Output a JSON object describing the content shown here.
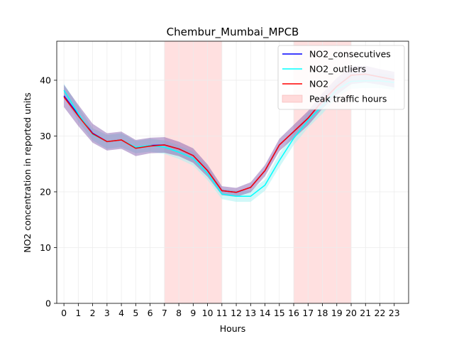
{
  "chart_data": {
    "type": "line",
    "title": "Chembur_Mumbai_MPCB",
    "xlabel": "Hours",
    "ylabel": "NO2 concentration in reported units",
    "x": [
      0,
      1,
      2,
      3,
      4,
      5,
      6,
      7,
      8,
      9,
      10,
      11,
      12,
      13,
      14,
      15,
      16,
      17,
      18,
      19,
      20,
      21,
      22,
      23
    ],
    "xlim": [
      -0.5,
      24
    ],
    "ylim": [
      0,
      47
    ],
    "yticks": [
      0,
      10,
      20,
      30,
      40
    ],
    "grid": true,
    "legend_position": "top-right",
    "peak_traffic_hours": [
      [
        7,
        11
      ],
      [
        16,
        20
      ]
    ],
    "series": [
      {
        "name": "NO2_consecutives",
        "color": "#0000ff",
        "values": [
          37.2,
          33.8,
          30.5,
          29.0,
          29.3,
          27.9,
          28.3,
          28.4,
          27.7,
          26.5,
          23.8,
          20.2,
          19.9,
          20.8,
          23.8,
          28.4,
          30.8,
          33.2,
          36.3,
          38.9,
          40.9,
          41.1,
          40.6,
          40.1
        ],
        "band_low": [
          35.2,
          31.8,
          28.8,
          27.4,
          27.7,
          26.4,
          26.9,
          27.0,
          26.4,
          25.2,
          22.7,
          19.4,
          19.1,
          19.9,
          22.8,
          27.3,
          29.6,
          31.9,
          34.9,
          37.4,
          39.3,
          39.6,
          39.2,
          38.7
        ],
        "band_high": [
          39.2,
          35.6,
          32.2,
          30.5,
          30.8,
          29.3,
          29.7,
          29.8,
          29.0,
          27.8,
          24.9,
          21.0,
          20.7,
          21.7,
          24.8,
          29.5,
          32.0,
          34.5,
          37.7,
          40.4,
          42.5,
          42.6,
          42.0,
          41.5
        ]
      },
      {
        "name": "NO2_outliers",
        "color": "#00ffff",
        "values": [
          38.2,
          34.0,
          30.3,
          29.0,
          29.3,
          28.0,
          28.3,
          28.0,
          27.1,
          26.0,
          23.3,
          19.6,
          19.2,
          19.2,
          21.2,
          25.6,
          29.6,
          32.8,
          35.4,
          38.3,
          39.8,
          39.9,
          39.9,
          39.6
        ],
        "band_low": [
          37.0,
          32.6,
          29.2,
          27.7,
          28.0,
          26.9,
          27.2,
          26.8,
          25.9,
          24.7,
          22.1,
          18.7,
          18.2,
          18.2,
          20.2,
          24.4,
          28.4,
          31.5,
          34.0,
          36.9,
          38.5,
          38.6,
          38.6,
          38.3
        ],
        "band_high": [
          39.4,
          35.3,
          31.4,
          30.2,
          30.5,
          29.1,
          29.5,
          29.2,
          28.3,
          27.2,
          24.5,
          20.5,
          20.2,
          20.2,
          22.2,
          26.8,
          30.8,
          34.1,
          36.8,
          39.7,
          41.1,
          41.2,
          41.2,
          40.9
        ]
      },
      {
        "name": "NO2",
        "color": "#ff0000",
        "values": [
          37.0,
          33.6,
          30.4,
          29.0,
          29.3,
          27.8,
          28.2,
          28.4,
          27.7,
          26.5,
          23.8,
          20.2,
          19.9,
          20.8,
          23.8,
          28.4,
          30.8,
          33.2,
          36.3,
          38.9,
          40.9,
          41.1,
          40.6,
          40.1
        ]
      }
    ],
    "legend": [
      "NO2_consecutives",
      "NO2_outliers",
      "NO2",
      "Peak traffic hours"
    ],
    "band_colors": {
      "consecutives": "#7b4fa6",
      "outliers": "#aaf3f3",
      "peak": "#ffdada",
      "grid": "#ececec"
    }
  }
}
